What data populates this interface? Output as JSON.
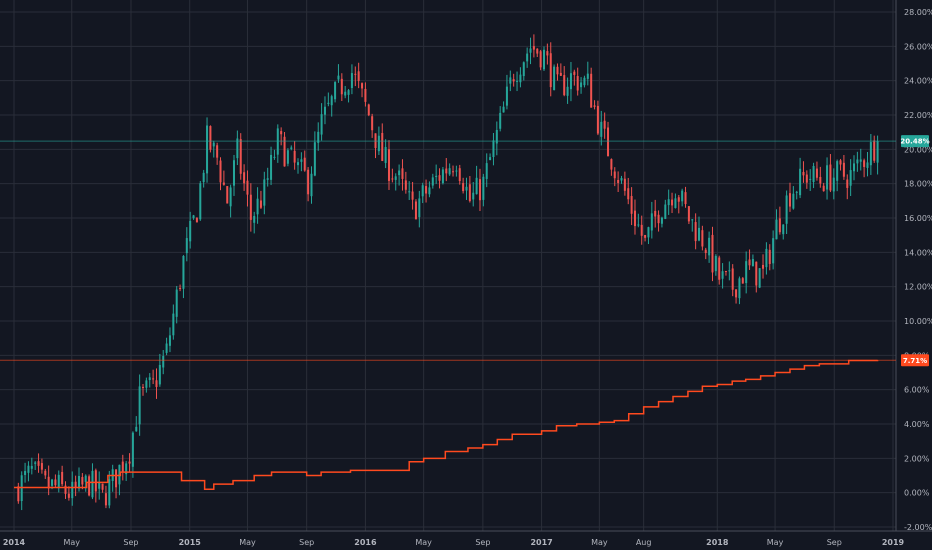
{
  "chart_data": {
    "type": "candlestick_with_line",
    "title": "",
    "xlabel": "",
    "ylabel": "",
    "y_unit": "%",
    "ylim": [
      -2.0,
      28.0
    ],
    "x_range": [
      "2014-01-01",
      "2018-12-31"
    ],
    "grid": true,
    "x_ticks": [
      {
        "label": "2014",
        "date": "2014-01-01",
        "bold": true
      },
      {
        "label": "May",
        "date": "2014-05-01",
        "bold": false
      },
      {
        "label": "Sep",
        "date": "2014-09-01",
        "bold": false
      },
      {
        "label": "2015",
        "date": "2015-01-01",
        "bold": true
      },
      {
        "label": "May",
        "date": "2015-05-01",
        "bold": false
      },
      {
        "label": "Sep",
        "date": "2015-09-01",
        "bold": false
      },
      {
        "label": "2016",
        "date": "2016-01-01",
        "bold": true
      },
      {
        "label": "May",
        "date": "2016-05-01",
        "bold": false
      },
      {
        "label": "Sep",
        "date": "2016-09-01",
        "bold": false
      },
      {
        "label": "2017",
        "date": "2017-01-01",
        "bold": true
      },
      {
        "label": "May",
        "date": "2017-05-01",
        "bold": false
      },
      {
        "label": "Aug",
        "date": "2017-08-01",
        "bold": false
      },
      {
        "label": "2018",
        "date": "2018-01-01",
        "bold": true
      },
      {
        "label": "May",
        "date": "2018-05-01",
        "bold": false
      },
      {
        "label": "Sep",
        "date": "2018-09-01",
        "bold": false
      },
      {
        "label": "2019",
        "date": "2019-01-01",
        "bold": true
      }
    ],
    "y_ticks": [
      {
        "value": 28,
        "label": "28.00%"
      },
      {
        "value": 26,
        "label": "26.00%"
      },
      {
        "value": 24,
        "label": "24.00%"
      },
      {
        "value": 22,
        "label": "22.00%"
      },
      {
        "value": 20,
        "label": "20.00%"
      },
      {
        "value": 18,
        "label": "18.00%"
      },
      {
        "value": 16,
        "label": "16.00%"
      },
      {
        "value": 14,
        "label": "14.00%"
      },
      {
        "value": 12,
        "label": "12.00%"
      },
      {
        "value": 10,
        "label": "10.00%"
      },
      {
        "value": 8,
        "label": "8.00%"
      },
      {
        "value": 6,
        "label": "6.00%"
      },
      {
        "value": 4,
        "label": "4.00%"
      },
      {
        "value": 2,
        "label": "2.00%"
      },
      {
        "value": 0,
        "label": "0.00%"
      },
      {
        "value": -2,
        "label": "-2.00%"
      }
    ],
    "candles": {
      "name": "",
      "up_color": "#26a69a",
      "down_color": "#ef5350",
      "last_value": 20.48,
      "last_label": "20.48%",
      "weekly_close_anchors": [
        [
          "2014-01-03",
          0.2
        ],
        [
          "2014-02-07",
          1.2
        ],
        [
          "2014-03-07",
          0.4
        ],
        [
          "2014-04-04",
          0.3
        ],
        [
          "2014-05-02",
          -0.1
        ],
        [
          "2014-06-06",
          0.6
        ],
        [
          "2014-07-04",
          -0.3
        ],
        [
          "2014-08-01",
          1.0
        ],
        [
          "2014-08-29",
          2.5
        ],
        [
          "2014-09-19",
          5.5
        ],
        [
          "2014-10-17",
          6.2
        ],
        [
          "2014-11-14",
          8.2
        ],
        [
          "2014-12-19",
          13.5
        ],
        [
          "2015-01-16",
          16.5
        ],
        [
          "2015-02-06",
          20.5
        ],
        [
          "2015-02-27",
          19.5
        ],
        [
          "2015-03-20",
          17.0
        ],
        [
          "2015-04-10",
          19.8
        ],
        [
          "2015-05-08",
          16.0
        ],
        [
          "2015-06-05",
          17.5
        ],
        [
          "2015-07-03",
          20.5
        ],
        [
          "2015-08-07",
          19.0
        ],
        [
          "2015-09-04",
          18.2
        ],
        [
          "2015-10-02",
          21.5
        ],
        [
          "2015-11-06",
          23.5
        ],
        [
          "2015-12-04",
          24.5
        ],
        [
          "2016-01-08",
          22.0
        ],
        [
          "2016-02-05",
          19.5
        ],
        [
          "2016-03-04",
          18.5
        ],
        [
          "2016-04-08",
          16.5
        ],
        [
          "2016-05-06",
          17.5
        ],
        [
          "2016-06-03",
          18.5
        ],
        [
          "2016-07-08",
          19.5
        ],
        [
          "2016-08-05",
          17.0
        ],
        [
          "2016-09-02",
          18.0
        ],
        [
          "2016-10-07",
          21.5
        ],
        [
          "2016-11-04",
          24.5
        ],
        [
          "2016-12-09",
          26.0
        ],
        [
          "2017-01-06",
          25.5
        ],
        [
          "2017-02-03",
          23.5
        ],
        [
          "2017-03-03",
          24.2
        ],
        [
          "2017-04-07",
          23.8
        ],
        [
          "2017-05-05",
          21.0
        ],
        [
          "2017-06-02",
          19.0
        ],
        [
          "2017-07-07",
          16.5
        ],
        [
          "2017-08-04",
          14.5
        ],
        [
          "2017-09-01",
          16.5
        ],
        [
          "2017-10-06",
          17.8
        ],
        [
          "2017-11-03",
          16.0
        ],
        [
          "2017-12-08",
          14.5
        ],
        [
          "2018-01-05",
          12.5
        ],
        [
          "2018-02-02",
          12.0
        ],
        [
          "2018-03-02",
          13.0
        ],
        [
          "2018-04-06",
          12.7
        ],
        [
          "2018-05-04",
          15.5
        ],
        [
          "2018-06-01",
          17.5
        ],
        [
          "2018-07-06",
          18.5
        ],
        [
          "2018-08-03",
          18.2
        ],
        [
          "2018-09-07",
          18.5
        ],
        [
          "2018-10-05",
          18.5
        ],
        [
          "2018-11-02",
          19.5
        ],
        [
          "2018-11-30",
          20.48
        ]
      ]
    },
    "line_series": {
      "name": "",
      "color": "#ff4a1f",
      "last_value": 7.71,
      "last_label": "7.71%",
      "step_points": [
        [
          "2014-01-01",
          0.3
        ],
        [
          "2014-06-01",
          0.6
        ],
        [
          "2014-07-15",
          1.0
        ],
        [
          "2014-08-10",
          1.2
        ],
        [
          "2014-12-01",
          1.2
        ],
        [
          "2014-12-15",
          0.7
        ],
        [
          "2015-02-01",
          0.2
        ],
        [
          "2015-02-20",
          0.5
        ],
        [
          "2015-04-01",
          0.7
        ],
        [
          "2015-05-15",
          1.0
        ],
        [
          "2015-06-20",
          1.2
        ],
        [
          "2015-09-01",
          1.0
        ],
        [
          "2015-10-01",
          1.2
        ],
        [
          "2015-12-01",
          1.3
        ],
        [
          "2016-04-01",
          1.8
        ],
        [
          "2016-05-01",
          2.0
        ],
        [
          "2016-06-15",
          2.4
        ],
        [
          "2016-08-01",
          2.6
        ],
        [
          "2016-09-01",
          2.8
        ],
        [
          "2016-10-01",
          3.1
        ],
        [
          "2016-11-01",
          3.4
        ],
        [
          "2017-01-01",
          3.6
        ],
        [
          "2017-02-01",
          3.9
        ],
        [
          "2017-03-15",
          4.0
        ],
        [
          "2017-05-01",
          4.1
        ],
        [
          "2017-06-01",
          4.2
        ],
        [
          "2017-07-01",
          4.6
        ],
        [
          "2017-08-01",
          5.0
        ],
        [
          "2017-09-01",
          5.3
        ],
        [
          "2017-10-01",
          5.6
        ],
        [
          "2017-11-01",
          5.9
        ],
        [
          "2017-12-01",
          6.2
        ],
        [
          "2018-01-01",
          6.3
        ],
        [
          "2018-02-01",
          6.5
        ],
        [
          "2018-03-01",
          6.6
        ],
        [
          "2018-04-01",
          6.8
        ],
        [
          "2018-05-01",
          7.0
        ],
        [
          "2018-06-01",
          7.2
        ],
        [
          "2018-07-01",
          7.4
        ],
        [
          "2018-08-01",
          7.5
        ],
        [
          "2018-09-01",
          7.5
        ],
        [
          "2018-10-01",
          7.7
        ],
        [
          "2018-11-30",
          7.71
        ]
      ]
    }
  }
}
